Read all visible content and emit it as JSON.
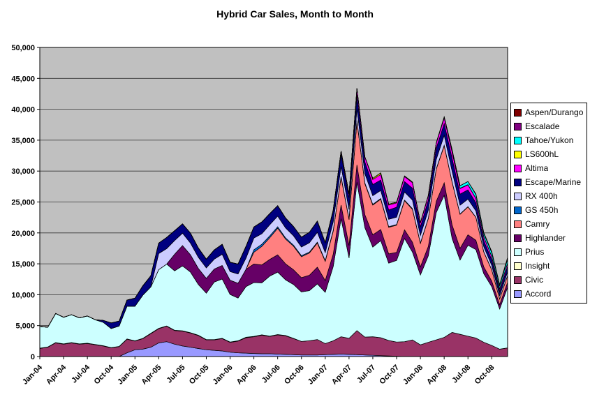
{
  "chart_data": {
    "type": "area",
    "stacked": true,
    "title": "Hybrid Car Sales, Month to Month",
    "xlabel": "",
    "ylabel": "",
    "ylim": [
      0,
      50000
    ],
    "y_tick_step": 5000,
    "x_tick_interval": 3,
    "grid": true,
    "plot_bg": "#C0C0C0",
    "grid_color": "#333333",
    "legend_position": "right",
    "legend_order": "reverse-of-series-array",
    "categories": [
      "Jan-04",
      "Feb-04",
      "Mar-04",
      "Apr-04",
      "May-04",
      "Jun-04",
      "Jul-04",
      "Aug-04",
      "Sep-04",
      "Oct-04",
      "Nov-04",
      "Dec-04",
      "Jan-05",
      "Feb-05",
      "Mar-05",
      "Apr-05",
      "May-05",
      "Jun-05",
      "Jul-05",
      "Aug-05",
      "Sep-05",
      "Oct-05",
      "Nov-05",
      "Dec-05",
      "Jan-06",
      "Feb-06",
      "Mar-06",
      "Apr-06",
      "May-06",
      "Jun-06",
      "Jul-06",
      "Aug-06",
      "Sep-06",
      "Oct-06",
      "Nov-06",
      "Dec-06",
      "Jan-07",
      "Feb-07",
      "Mar-07",
      "Apr-07",
      "May-07",
      "Jun-07",
      "Jul-07",
      "Aug-07",
      "Sep-07",
      "Oct-07",
      "Nov-07",
      "Dec-07",
      "Jan-08",
      "Feb-08",
      "Mar-08",
      "Apr-08",
      "May-08",
      "Jun-08",
      "Jul-08",
      "Aug-08",
      "Sep-08",
      "Oct-08",
      "Nov-08",
      "Dec-08"
    ],
    "series": [
      {
        "name": "Accord",
        "color": "#9999FF",
        "values": [
          0,
          0,
          0,
          0,
          0,
          0,
          0,
          0,
          0,
          0,
          0,
          600,
          1100,
          1200,
          1500,
          2200,
          2400,
          2000,
          1700,
          1500,
          1300,
          1100,
          1000,
          900,
          700,
          600,
          550,
          500,
          450,
          450,
          400,
          350,
          300,
          250,
          250,
          250,
          300,
          350,
          400,
          350,
          300,
          250,
          200,
          150,
          100,
          50,
          0,
          0,
          0,
          0,
          0,
          0,
          0,
          0,
          0,
          0,
          0,
          0,
          0,
          0
        ]
      },
      {
        "name": "Civic",
        "color": "#993366",
        "values": [
          1300,
          1500,
          2200,
          2000,
          2200,
          2000,
          2100,
          1900,
          1700,
          1400,
          1600,
          2200,
          1400,
          1700,
          2200,
          2300,
          2500,
          2200,
          2400,
          2300,
          2100,
          1600,
          1700,
          2000,
          1600,
          1900,
          2500,
          2700,
          3000,
          2800,
          3100,
          3000,
          2600,
          2200,
          2300,
          2500,
          1800,
          2200,
          2800,
          2600,
          3900,
          2900,
          3000,
          2900,
          2500,
          2300,
          2400,
          2700,
          1900,
          2300,
          2700,
          3100,
          3900,
          3600,
          3300,
          3000,
          2300,
          1800,
          1200,
          1400
        ]
      },
      {
        "name": "Insight",
        "color": "#FFFFCC",
        "values": [
          50,
          45,
          60,
          55,
          60,
          50,
          55,
          50,
          45,
          40,
          35,
          40,
          40,
          45,
          60,
          55,
          60,
          55,
          60,
          55,
          50,
          45,
          40,
          45,
          50,
          55,
          60,
          65,
          70,
          60,
          55,
          50,
          45,
          0,
          0,
          0,
          0,
          0,
          0,
          0,
          0,
          0,
          0,
          0,
          0,
          0,
          0,
          0,
          0,
          0,
          0,
          0,
          0,
          0,
          0,
          0,
          0,
          0,
          0,
          0
        ]
      },
      {
        "name": "Prius",
        "color": "#CCFFFF",
        "values": [
          3500,
          3200,
          4700,
          4300,
          4500,
          4200,
          4400,
          4000,
          3800,
          3100,
          3300,
          5300,
          5600,
          7000,
          7500,
          9500,
          10000,
          9600,
          10500,
          9800,
          8200,
          7500,
          9300,
          9600,
          7700,
          6900,
          8200,
          8700,
          8400,
          9700,
          10100,
          9000,
          8700,
          8000,
          8100,
          9000,
          8300,
          12000,
          19100,
          13000,
          24000,
          17700,
          14500,
          15700,
          12500,
          13200,
          16700,
          14200,
          11300,
          14000,
          20600,
          23000,
          15200,
          12000,
          14700,
          14300,
          11100,
          9500,
          6500,
          9800
        ]
      },
      {
        "name": "Highlander",
        "color": "#660066",
        "values": [
          0,
          0,
          0,
          0,
          0,
          0,
          0,
          0,
          0,
          0,
          0,
          0,
          0,
          0,
          0,
          0,
          0,
          2700,
          3300,
          2800,
          2600,
          2400,
          2100,
          2200,
          2300,
          2400,
          2800,
          3000,
          2900,
          2700,
          2800,
          2600,
          2400,
          2300,
          2500,
          2700,
          1900,
          2000,
          2200,
          2000,
          2800,
          2100,
          2000,
          1800,
          1500,
          1300,
          1400,
          1600,
          1300,
          1500,
          1800,
          2000,
          2200,
          1900,
          1700,
          1500,
          1100,
          900,
          700,
          800
        ]
      },
      {
        "name": "Camry",
        "color": "#FF8080",
        "values": [
          0,
          0,
          0,
          0,
          0,
          0,
          0,
          0,
          0,
          0,
          0,
          0,
          0,
          0,
          0,
          0,
          0,
          0,
          0,
          0,
          0,
          0,
          0,
          0,
          0,
          0,
          0,
          1900,
          3000,
          3500,
          4300,
          4000,
          3800,
          3400,
          3600,
          3900,
          3100,
          3700,
          4500,
          4200,
          7000,
          5000,
          4800,
          4900,
          4300,
          4400,
          4700,
          5300,
          3800,
          4500,
          5200,
          6000,
          6900,
          5500,
          4500,
          3700,
          2400,
          1800,
          900,
          1100
        ]
      },
      {
        "name": "GS 450h",
        "color": "#0066CC",
        "values": [
          0,
          0,
          0,
          0,
          0,
          0,
          0,
          0,
          0,
          0,
          0,
          0,
          0,
          0,
          0,
          0,
          0,
          0,
          0,
          0,
          0,
          0,
          0,
          0,
          0,
          0,
          0,
          400,
          350,
          300,
          250,
          200,
          180,
          160,
          150,
          150,
          120,
          130,
          140,
          130,
          200,
          130,
          120,
          110,
          100,
          100,
          110,
          120,
          80,
          80,
          90,
          90,
          90,
          70,
          60,
          50,
          40,
          40,
          30,
          30
        ]
      },
      {
        "name": "RX 400h",
        "color": "#CCCCFF",
        "values": [
          0,
          0,
          0,
          0,
          0,
          0,
          0,
          0,
          0,
          0,
          0,
          0,
          0,
          0,
          0,
          2600,
          2500,
          2200,
          2000,
          1900,
          1800,
          1700,
          1600,
          1800,
          1400,
          1500,
          1800,
          1900,
          1700,
          1800,
          1700,
          1600,
          1500,
          1400,
          1500,
          1600,
          1300,
          1400,
          1600,
          1500,
          1900,
          1500,
          1400,
          1300,
          1200,
          1200,
          1300,
          1400,
          1200,
          1300,
          1500,
          1600,
          1700,
          1400,
          1200,
          1000,
          800,
          700,
          500,
          600
        ]
      },
      {
        "name": "Escape/Marine",
        "color": "#000080",
        "values": [
          0,
          0,
          0,
          0,
          0,
          0,
          0,
          0,
          300,
          900,
          800,
          1000,
          1300,
          1500,
          1800,
          1700,
          1800,
          1600,
          1500,
          1600,
          1500,
          1400,
          1500,
          1600,
          1500,
          1600,
          1900,
          1800,
          1900,
          1800,
          1700,
          1600,
          1500,
          1600,
          1700,
          1800,
          1600,
          1700,
          2000,
          1900,
          2200,
          1900,
          1800,
          1700,
          1500,
          1600,
          1700,
          1900,
          1400,
          1600,
          1800,
          1900,
          2100,
          1800,
          1500,
          1300,
          1000,
          900,
          700,
          900
        ]
      },
      {
        "name": "Altima",
        "color": "#FF00FF",
        "values": [
          0,
          0,
          0,
          0,
          0,
          0,
          0,
          0,
          0,
          0,
          0,
          0,
          0,
          0,
          0,
          0,
          0,
          0,
          0,
          0,
          0,
          0,
          0,
          0,
          0,
          0,
          0,
          0,
          0,
          0,
          0,
          0,
          0,
          0,
          0,
          0,
          0,
          200,
          500,
          600,
          1100,
          800,
          800,
          900,
          800,
          700,
          800,
          900,
          600,
          700,
          800,
          900,
          1000,
          900,
          800,
          700,
          600,
          500,
          400,
          500
        ]
      },
      {
        "name": "LS600hL",
        "color": "#FFFF00",
        "values": [
          0,
          0,
          0,
          0,
          0,
          0,
          0,
          0,
          0,
          0,
          0,
          0,
          0,
          0,
          0,
          0,
          0,
          0,
          0,
          0,
          0,
          0,
          0,
          0,
          0,
          0,
          0,
          0,
          0,
          0,
          0,
          0,
          0,
          0,
          0,
          0,
          0,
          0,
          0,
          0,
          0,
          0,
          200,
          250,
          150,
          120,
          100,
          100,
          80,
          80,
          90,
          80,
          70,
          60,
          50,
          50,
          40,
          40,
          30,
          30
        ]
      },
      {
        "name": "Tahoe/Yukon",
        "color": "#00FFFF",
        "values": [
          0,
          0,
          0,
          0,
          0,
          0,
          0,
          0,
          0,
          0,
          0,
          0,
          0,
          0,
          0,
          0,
          0,
          0,
          0,
          0,
          0,
          0,
          0,
          0,
          0,
          0,
          0,
          0,
          0,
          0,
          0,
          0,
          0,
          0,
          0,
          0,
          0,
          0,
          0,
          0,
          0,
          0,
          0,
          0,
          0,
          0,
          0,
          0,
          0,
          0,
          0,
          100,
          300,
          400,
          500,
          600,
          500,
          600,
          500,
          600
        ]
      },
      {
        "name": "Escalade",
        "color": "#800080",
        "values": [
          0,
          0,
          0,
          0,
          0,
          0,
          0,
          0,
          0,
          0,
          0,
          0,
          0,
          0,
          0,
          0,
          0,
          0,
          0,
          0,
          0,
          0,
          0,
          0,
          0,
          0,
          0,
          0,
          0,
          0,
          0,
          0,
          0,
          0,
          0,
          0,
          0,
          0,
          0,
          0,
          0,
          0,
          0,
          0,
          0,
          0,
          0,
          0,
          0,
          0,
          0,
          0,
          0,
          0,
          0,
          100,
          150,
          200,
          150,
          200
        ]
      },
      {
        "name": "Aspen/Durango",
        "color": "#800000",
        "values": [
          0,
          0,
          0,
          0,
          0,
          0,
          0,
          0,
          0,
          0,
          0,
          0,
          0,
          0,
          0,
          0,
          0,
          0,
          0,
          0,
          0,
          0,
          0,
          0,
          0,
          0,
          0,
          0,
          0,
          0,
          0,
          0,
          0,
          0,
          0,
          0,
          0,
          0,
          0,
          0,
          0,
          0,
          0,
          0,
          0,
          0,
          0,
          0,
          0,
          0,
          0,
          0,
          0,
          0,
          0,
          0,
          0,
          0,
          50,
          100
        ]
      }
    ]
  }
}
